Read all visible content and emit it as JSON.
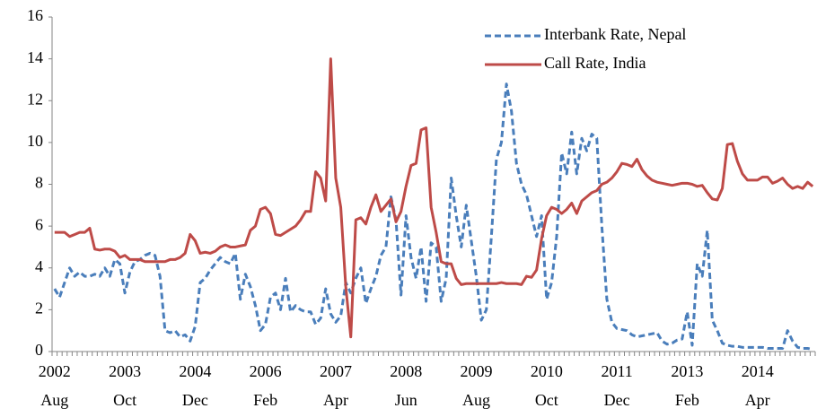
{
  "chart_data": {
    "type": "line",
    "categories": [
      "2002\nAug",
      null,
      null,
      null,
      null,
      null,
      null,
      null,
      null,
      null,
      null,
      null,
      null,
      null,
      "2003\nOct",
      null,
      null,
      null,
      null,
      null,
      null,
      null,
      null,
      null,
      null,
      null,
      null,
      null,
      "2004\nDec",
      null,
      null,
      null,
      null,
      null,
      null,
      null,
      null,
      null,
      null,
      null,
      null,
      null,
      "2006\nFeb",
      null,
      null,
      null,
      null,
      null,
      null,
      null,
      null,
      null,
      null,
      null,
      null,
      null,
      "2007\nApr",
      null,
      null,
      null,
      null,
      null,
      null,
      null,
      null,
      null,
      null,
      null,
      null,
      null,
      "2008\nJun",
      null,
      null,
      null,
      null,
      null,
      null,
      null,
      null,
      null,
      null,
      null,
      null,
      null,
      "2009\nAug",
      null,
      null,
      null,
      null,
      null,
      null,
      null,
      null,
      null,
      null,
      null,
      null,
      null,
      "2010\nOct",
      null,
      null,
      null,
      null,
      null,
      null,
      null,
      null,
      null,
      null,
      null,
      null,
      null,
      "2011\nDec",
      null,
      null,
      null,
      null,
      null,
      null,
      null,
      null,
      null,
      null,
      null,
      null,
      null,
      "2013\nFeb",
      null,
      null,
      null,
      null,
      null,
      null,
      null,
      null,
      null,
      null,
      null,
      null,
      null,
      "2014\nApr",
      null,
      null,
      null,
      null,
      null,
      null,
      null,
      null,
      null,
      null,
      null
    ],
    "series": [
      {
        "name": "Interbank Rate, Nepal",
        "color": "#4a7ebb",
        "style": "dashed",
        "values": [
          3.0,
          2.6,
          3.3,
          4.0,
          3.6,
          3.8,
          3.6,
          3.6,
          3.7,
          3.6,
          4.0,
          3.6,
          4.4,
          4.2,
          2.8,
          3.8,
          4.3,
          4.4,
          4.6,
          4.7,
          4.6,
          3.6,
          1.0,
          0.9,
          1.0,
          0.7,
          0.8,
          0.5,
          1.2,
          3.3,
          3.5,
          3.9,
          4.2,
          4.5,
          4.3,
          4.2,
          4.7,
          2.5,
          3.7,
          3.1,
          2.2,
          1.0,
          1.3,
          2.6,
          2.8,
          2.0,
          3.5,
          1.9,
          2.2,
          2.0,
          1.9,
          1.9,
          1.3,
          1.6,
          3.0,
          1.8,
          1.4,
          1.7,
          3.3,
          2.8,
          3.5,
          4.0,
          2.3,
          3.0,
          3.6,
          4.6,
          5.0,
          7.4,
          6.3,
          2.7,
          6.5,
          4.5,
          3.5,
          5.0,
          2.4,
          5.2,
          5.0,
          2.4,
          3.5,
          8.3,
          6.5,
          5.0,
          7.0,
          5.3,
          3.6,
          1.5,
          2.0,
          5.5,
          9.2,
          10.0,
          12.8,
          11.5,
          9.0,
          8.0,
          7.5,
          6.5,
          5.5,
          6.5,
          2.5,
          3.3,
          5.5,
          9.5,
          8.5,
          10.5,
          8.5,
          10.2,
          9.6,
          10.4,
          10.2,
          6.0,
          2.5,
          1.4,
          1.1,
          1.05,
          1.0,
          0.8,
          0.7,
          0.75,
          0.8,
          0.85,
          0.9,
          0.5,
          0.35,
          0.4,
          0.55,
          0.6,
          1.9,
          0.3,
          4.2,
          3.6,
          5.8,
          1.5,
          1.0,
          0.4,
          0.3,
          0.25,
          0.25,
          0.2,
          0.2,
          0.2,
          0.2,
          0.2,
          0.15,
          0.15,
          0.15,
          0.15,
          1.0,
          0.5,
          0.2,
          0.15,
          0.15,
          0.1
        ]
      },
      {
        "name": "Call Rate, India",
        "color": "#be4b48",
        "style": "solid",
        "values": [
          5.7,
          5.7,
          5.7,
          5.5,
          5.6,
          5.7,
          5.7,
          5.9,
          4.9,
          4.85,
          4.9,
          4.9,
          4.8,
          4.5,
          4.6,
          4.4,
          4.4,
          4.4,
          4.3,
          4.3,
          4.3,
          4.3,
          4.3,
          4.4,
          4.4,
          4.5,
          4.7,
          5.6,
          5.3,
          4.7,
          4.75,
          4.7,
          4.8,
          5.0,
          5.1,
          5.0,
          5.0,
          5.05,
          5.1,
          5.8,
          6.0,
          6.8,
          6.9,
          6.6,
          5.6,
          5.55,
          5.7,
          5.85,
          6.0,
          6.3,
          6.7,
          6.7,
          8.6,
          8.3,
          7.2,
          14.0,
          8.3,
          6.9,
          3.1,
          0.7,
          6.3,
          6.4,
          6.1,
          6.9,
          7.5,
          6.7,
          7.0,
          7.3,
          6.2,
          6.7,
          7.9,
          8.9,
          9.0,
          10.6,
          10.7,
          6.9,
          5.7,
          4.3,
          4.2,
          4.2,
          3.5,
          3.2,
          3.25,
          3.25,
          3.25,
          3.25,
          3.25,
          3.25,
          3.25,
          3.3,
          3.25,
          3.25,
          3.25,
          3.2,
          3.6,
          3.55,
          3.9,
          5.4,
          6.5,
          6.9,
          6.8,
          6.6,
          6.8,
          7.1,
          6.6,
          7.2,
          7.4,
          7.6,
          7.7,
          8.0,
          8.1,
          8.3,
          8.6,
          9.0,
          8.95,
          8.85,
          9.2,
          8.7,
          8.4,
          8.2,
          8.1,
          8.05,
          8.0,
          7.95,
          8.0,
          8.05,
          8.05,
          8.0,
          7.9,
          7.95,
          7.6,
          7.3,
          7.25,
          7.8,
          9.9,
          9.95,
          9.1,
          8.5,
          8.2,
          8.2,
          8.2,
          8.35,
          8.35,
          8.05,
          8.15,
          8.3,
          8.0,
          7.8,
          7.9,
          7.8,
          8.1,
          7.9
        ]
      }
    ],
    "ylim": [
      0,
      16
    ],
    "yticks": [
      0,
      2,
      4,
      6,
      8,
      10,
      12,
      14,
      16
    ],
    "grid": false,
    "legend": "upper right"
  }
}
